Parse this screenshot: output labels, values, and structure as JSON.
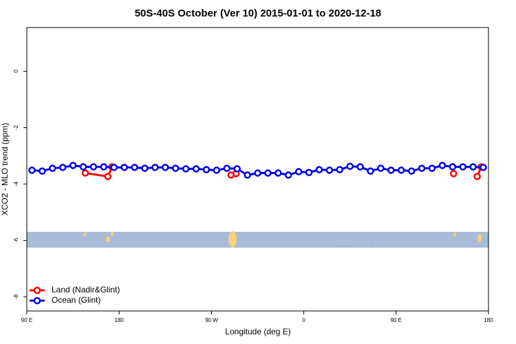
{
  "chart_data": {
    "type": "line",
    "title": "50S-40S October (Ver 10)   2015-01-01 to 2020-12-18",
    "x_label": "Longitude (deg E)",
    "y_label": "XCO2 - MLO trend (ppm)",
    "xlim": [
      90,
      540
    ],
    "ylim": [
      -8.5,
      1.55
    ],
    "xticks": [
      {
        "value": 90,
        "label": "90 E"
      },
      180,
      {
        "value": 270,
        "label": "90 W"
      },
      {
        "value": 360,
        "label": "0"
      },
      {
        "value": 450,
        "label": "90 E"
      },
      {
        "value": 540,
        "label": "180"
      }
    ],
    "yticks": [
      0,
      -2,
      -4,
      -6,
      -8
    ],
    "legend": "bottom-left",
    "series": [
      {
        "name": "Land (Nadir&Glint)",
        "color": "#ff0000",
        "x": [
          147,
          169,
          173,
          null,
          289,
          294,
          null,
          506,
          null,
          529,
          533
        ],
        "values": [
          -3.61,
          -3.73,
          -3.39,
          null,
          -3.68,
          -3.63,
          null,
          -3.63,
          null,
          -3.73,
          -3.39
        ]
      },
      {
        "name": "Ocean (Glint)",
        "color": "#0000ee",
        "x": [
          95,
          105,
          115,
          125,
          135,
          145,
          155,
          165,
          175,
          185,
          195,
          205,
          215,
          225,
          235,
          245,
          255,
          265,
          275,
          285,
          295,
          305,
          315,
          325,
          335,
          345,
          355,
          365,
          375,
          385,
          395,
          405,
          415,
          425,
          435,
          445,
          455,
          465,
          475,
          485,
          495,
          505,
          515,
          525,
          535
        ],
        "values": [
          -3.51,
          -3.54,
          -3.44,
          -3.41,
          -3.34,
          -3.39,
          -3.39,
          -3.39,
          -3.41,
          -3.41,
          -3.41,
          -3.44,
          -3.41,
          -3.41,
          -3.44,
          -3.46,
          -3.46,
          -3.49,
          -3.51,
          -3.44,
          -3.46,
          -3.68,
          -3.61,
          -3.61,
          -3.61,
          -3.68,
          -3.56,
          -3.59,
          -3.49,
          -3.51,
          -3.49,
          -3.37,
          -3.39,
          -3.54,
          -3.44,
          -3.51,
          -3.51,
          -3.54,
          -3.44,
          -3.44,
          -3.34,
          -3.39,
          -3.39,
          -3.39,
          -3.41
        ]
      }
    ]
  }
}
